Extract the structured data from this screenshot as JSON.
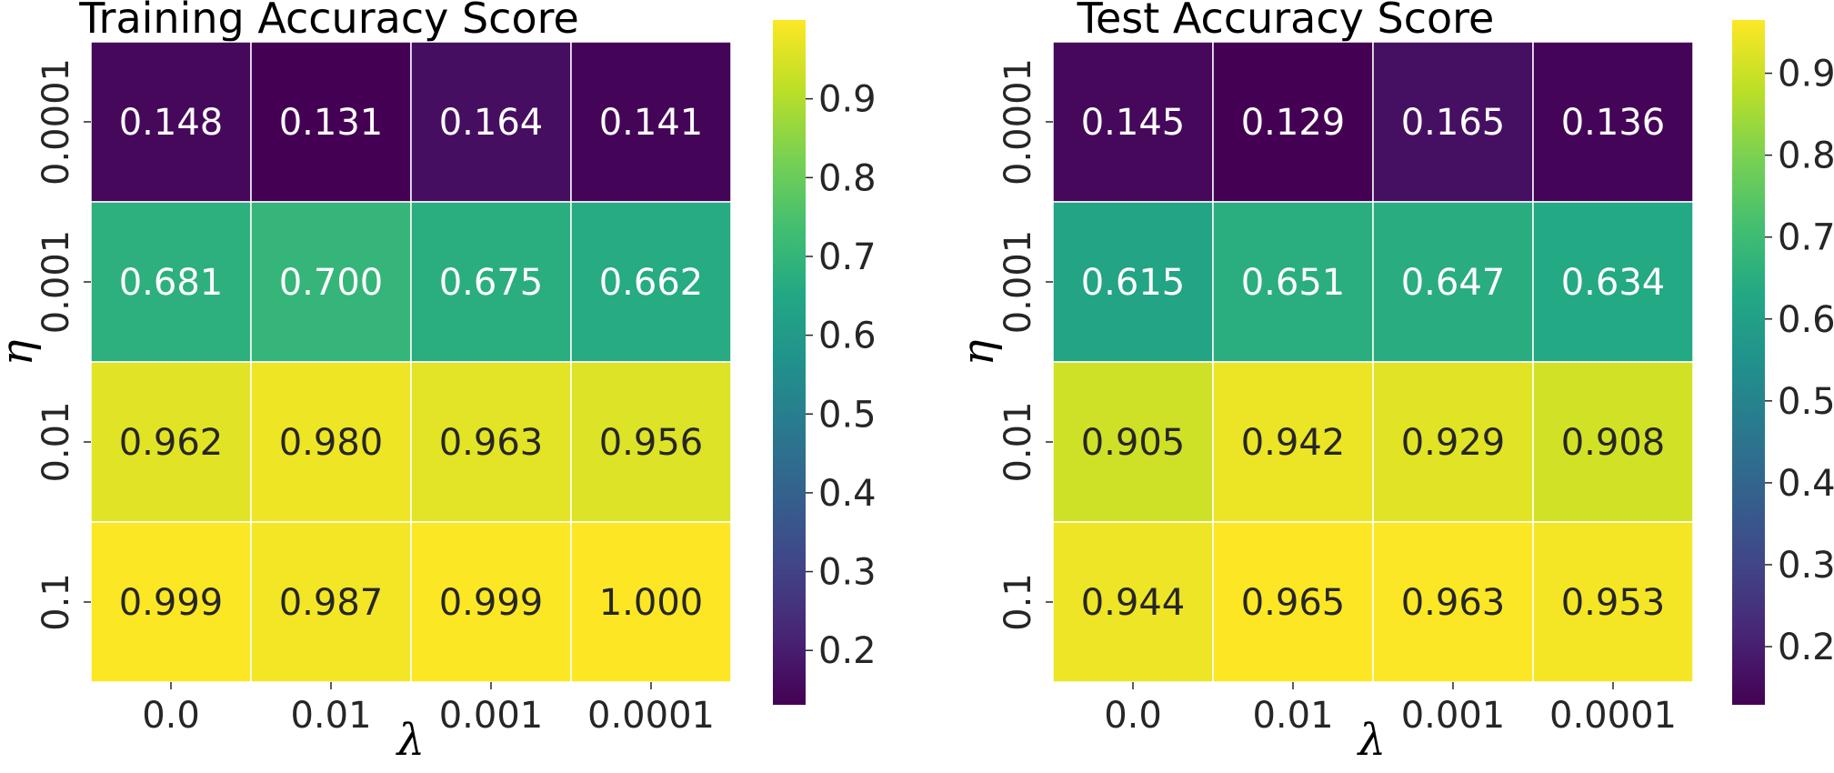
{
  "chart_data": [
    {
      "type": "heatmap",
      "title": "Training Accuracy Score",
      "xlabel": "λ",
      "ylabel": "η",
      "x_categories": [
        "0.0",
        "0.01",
        "0.001",
        "0.0001"
      ],
      "y_categories": [
        "0.0001",
        "0.001",
        "0.01",
        "0.1"
      ],
      "values": [
        [
          0.148,
          0.131,
          0.164,
          0.141
        ],
        [
          0.681,
          0.7,
          0.675,
          0.662
        ],
        [
          0.962,
          0.98,
          0.963,
          0.956
        ],
        [
          0.999,
          0.987,
          0.999,
          1.0
        ]
      ],
      "value_labels": [
        [
          "0.148",
          "0.131",
          "0.164",
          "0.141"
        ],
        [
          "0.681",
          "0.700",
          "0.675",
          "0.662"
        ],
        [
          "0.962",
          "0.980",
          "0.963",
          "0.956"
        ],
        [
          "0.999",
          "0.987",
          "0.999",
          "1.000"
        ]
      ],
      "colormap": "viridis",
      "colorbar": {
        "range": [
          0.131,
          1.0
        ],
        "ticks": [
          0.2,
          0.3,
          0.4,
          0.5,
          0.6,
          0.7,
          0.8,
          0.9
        ],
        "tick_labels": [
          "0.2",
          "0.3",
          "0.4",
          "0.5",
          "0.6",
          "0.7",
          "0.8",
          "0.9"
        ]
      },
      "grid": false
    },
    {
      "type": "heatmap",
      "title": "Test Accuracy Score",
      "xlabel": "λ",
      "ylabel": "η",
      "x_categories": [
        "0.0",
        "0.01",
        "0.001",
        "0.0001"
      ],
      "y_categories": [
        "0.0001",
        "0.001",
        "0.01",
        "0.1"
      ],
      "values": [
        [
          0.145,
          0.129,
          0.165,
          0.136
        ],
        [
          0.615,
          0.651,
          0.647,
          0.634
        ],
        [
          0.905,
          0.942,
          0.929,
          0.908
        ],
        [
          0.944,
          0.965,
          0.963,
          0.953
        ]
      ],
      "value_labels": [
        [
          "0.145",
          "0.129",
          "0.165",
          "0.136"
        ],
        [
          "0.615",
          "0.651",
          "0.647",
          "0.634"
        ],
        [
          "0.905",
          "0.942",
          "0.929",
          "0.908"
        ],
        [
          "0.944",
          "0.965",
          "0.963",
          "0.953"
        ]
      ],
      "colormap": "viridis",
      "colorbar": {
        "range": [
          0.129,
          0.965
        ],
        "ticks": [
          0.2,
          0.3,
          0.4,
          0.5,
          0.6,
          0.7,
          0.8,
          0.9
        ],
        "tick_labels": [
          "0.2",
          "0.3",
          "0.4",
          "0.5",
          "0.6",
          "0.7",
          "0.8",
          "0.9"
        ]
      },
      "grid": false
    }
  ]
}
